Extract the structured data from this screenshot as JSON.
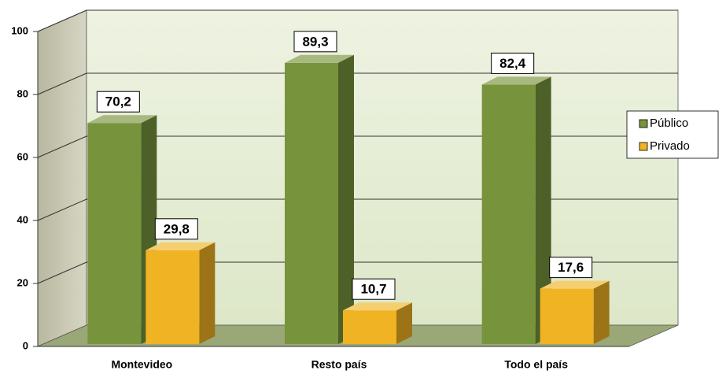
{
  "chart_data": {
    "type": "bar3d",
    "categories": [
      "Montevideo",
      "Resto país",
      "Todo el país"
    ],
    "series": [
      {
        "name": "Público",
        "color": "#77933c",
        "values": [
          70.2,
          89.3,
          82.4
        ],
        "value_labels": [
          "70,2",
          "89,3",
          "82,4"
        ]
      },
      {
        "name": "Privado",
        "color": "#f0b323",
        "values": [
          29.8,
          10.7,
          17.6
        ],
        "value_labels": [
          "29,8",
          "10,7",
          "17,6"
        ]
      }
    ],
    "ylim": [
      0,
      100
    ],
    "yticks": [
      0,
      20,
      40,
      60,
      80,
      100
    ],
    "grid": true,
    "legend": "right"
  }
}
